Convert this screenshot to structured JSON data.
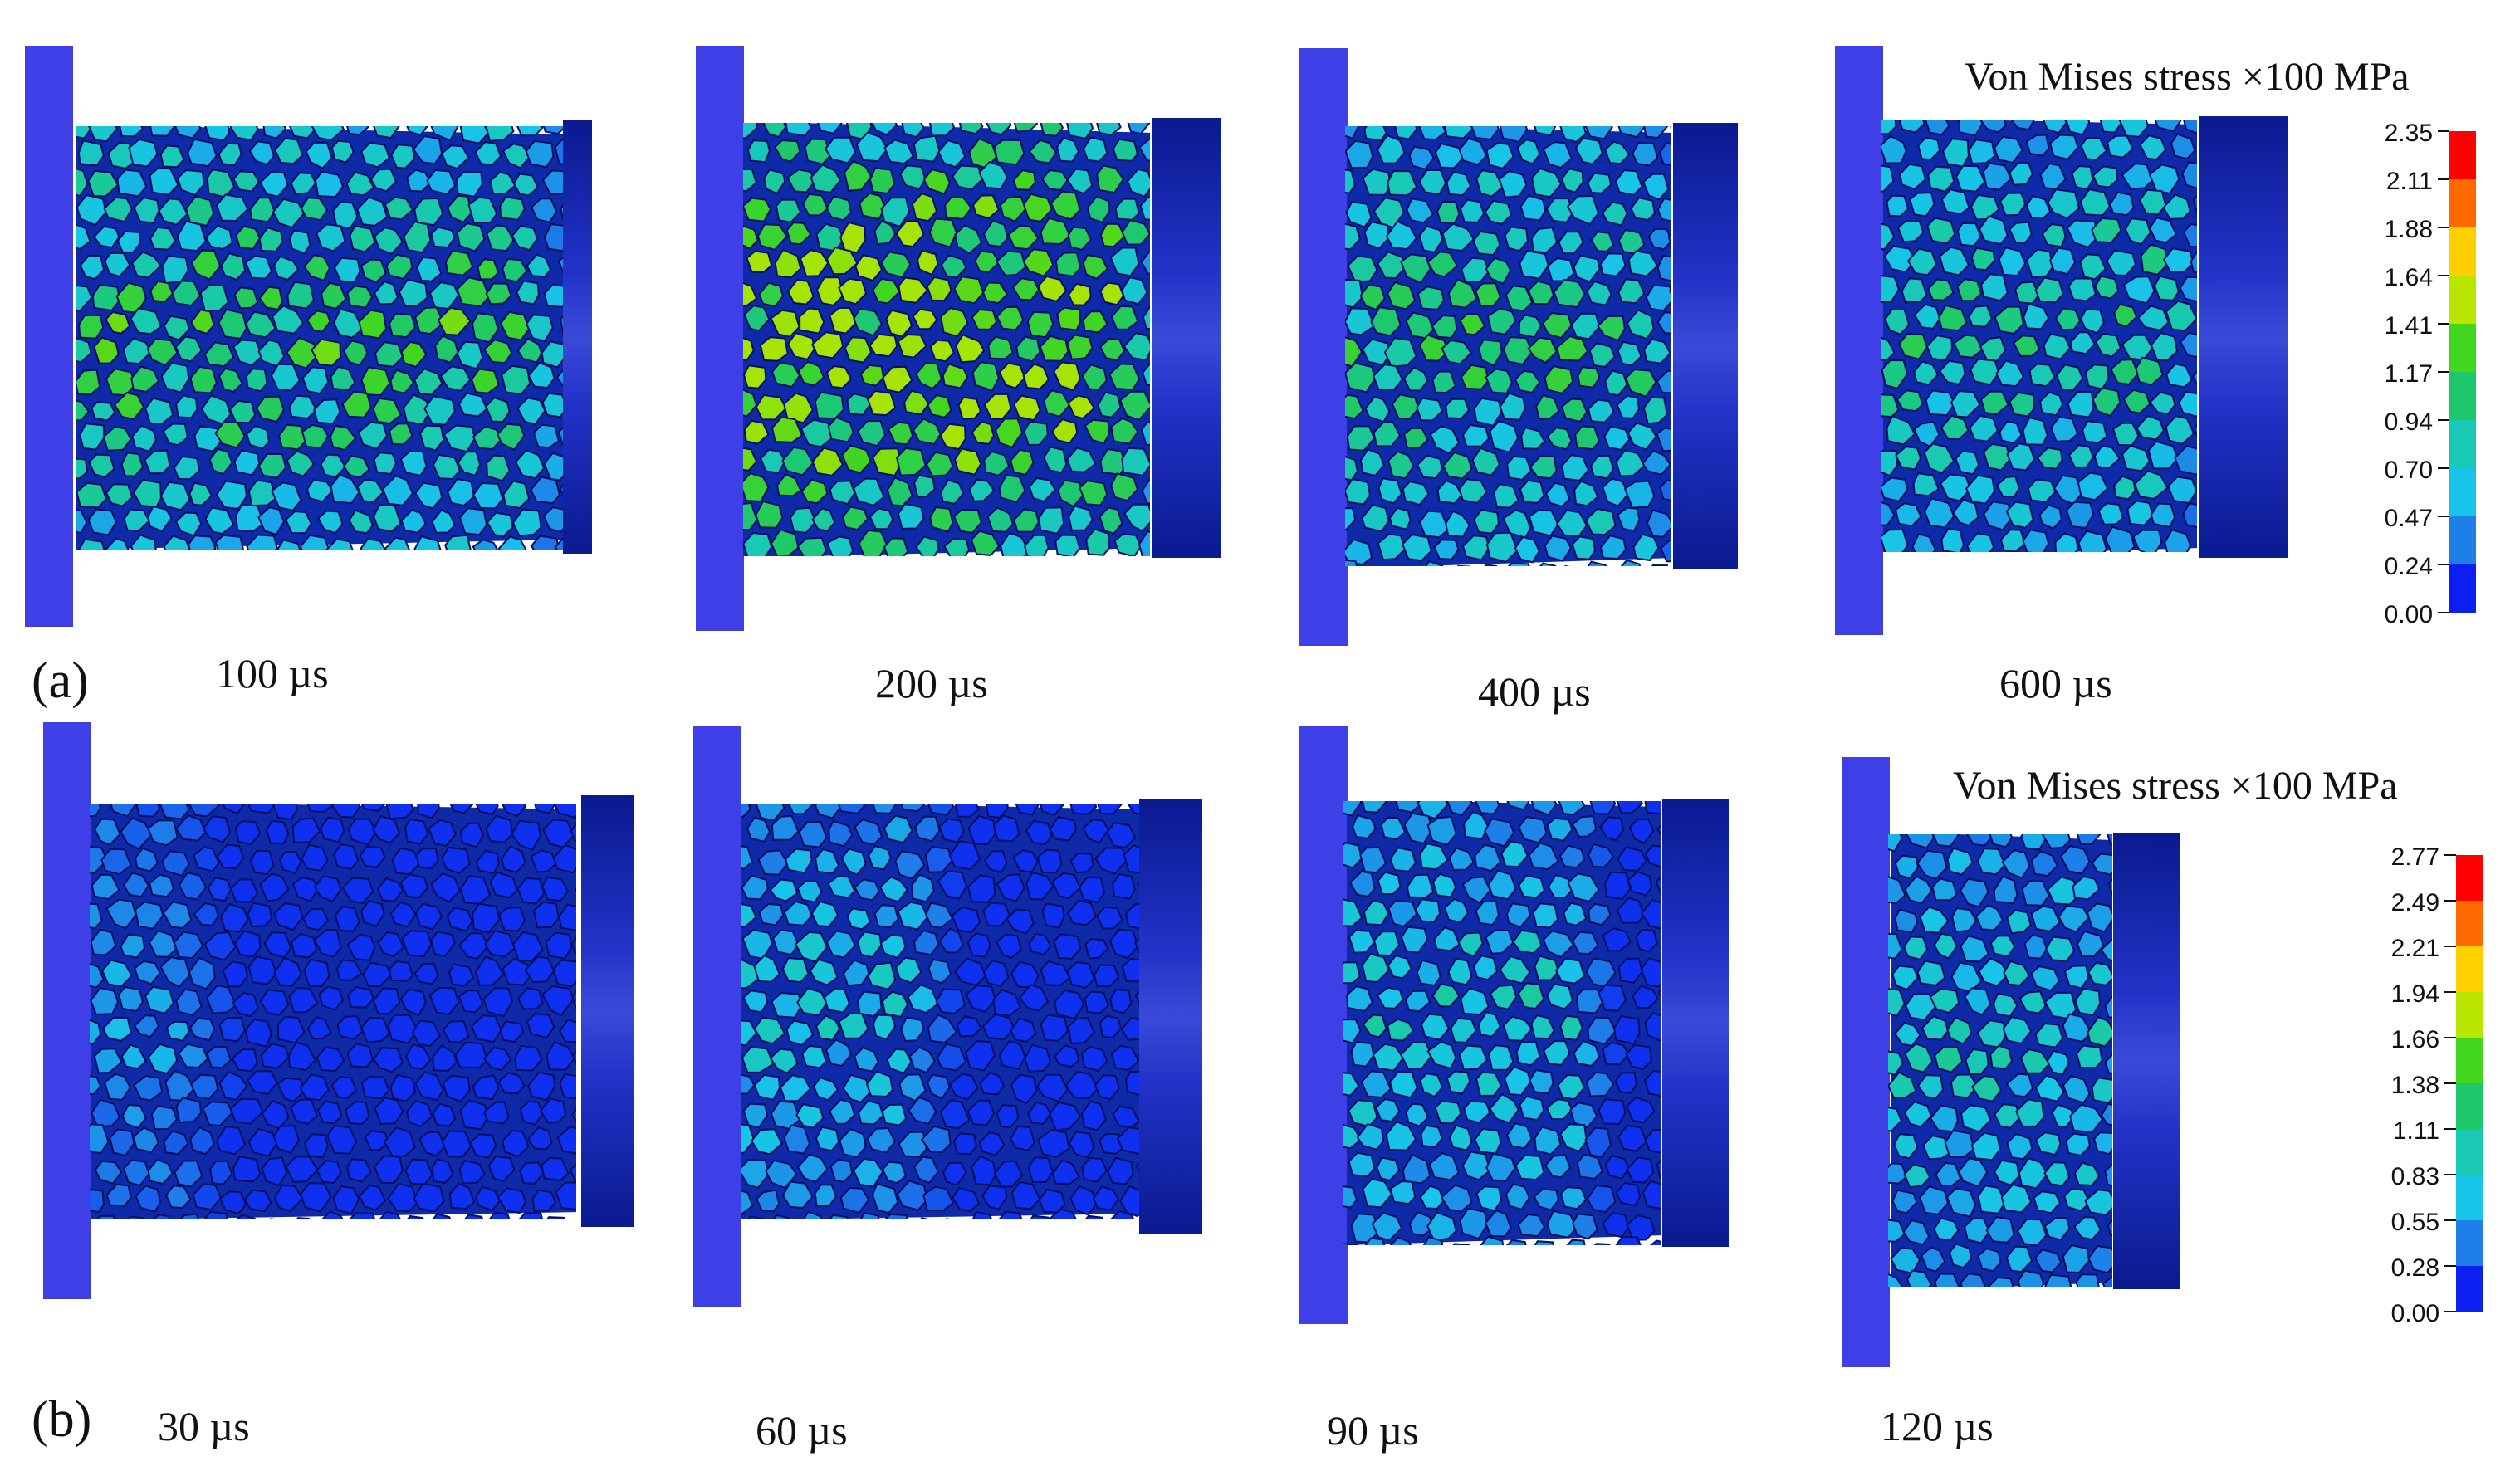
{
  "rows": [
    {
      "label": "(a)",
      "frames": [
        {
          "time": "100 µs",
          "stress_level": 0.55
        },
        {
          "time": "200 µs",
          "stress_level": 0.8
        },
        {
          "time": "400 µs",
          "stress_level": 0.5
        },
        {
          "time": "600 µs",
          "stress_level": 0.45
        }
      ],
      "legend": {
        "title": "Von Mises stress ×100 MPa",
        "ticks": [
          "2.35",
          "2.11",
          "1.88",
          "1.64",
          "1.41",
          "1.17",
          "0.94",
          "0.70",
          "0.47",
          "0.24",
          "0.00"
        ]
      }
    },
    {
      "label": "(b)",
      "frames": [
        {
          "time": "30 µs",
          "stress_level": 0.2
        },
        {
          "time": "60 µs",
          "stress_level": 0.3
        },
        {
          "time": "90 µs",
          "stress_level": 0.35
        },
        {
          "time": "120 µs",
          "stress_level": 0.35
        }
      ],
      "legend": {
        "title": "Von Mises stress ×100 MPa",
        "ticks": [
          "2.77",
          "2.49",
          "2.21",
          "1.94",
          "1.66",
          "1.38",
          "1.11",
          "0.83",
          "0.55",
          "0.28",
          "0.00"
        ]
      }
    }
  ],
  "colors": {
    "bar": "#3f3fe8",
    "platen_dark": "#0a1a8f",
    "platen_mid": "#2233c8",
    "grain_base": "#0e2aa8",
    "legend_scale": [
      "#ff0000",
      "#ff6a00",
      "#ffd000",
      "#b8e600",
      "#42d61f",
      "#1ec86a",
      "#19c9b4",
      "#18c4e8",
      "#1f7fe8",
      "#0b1ff0"
    ]
  }
}
